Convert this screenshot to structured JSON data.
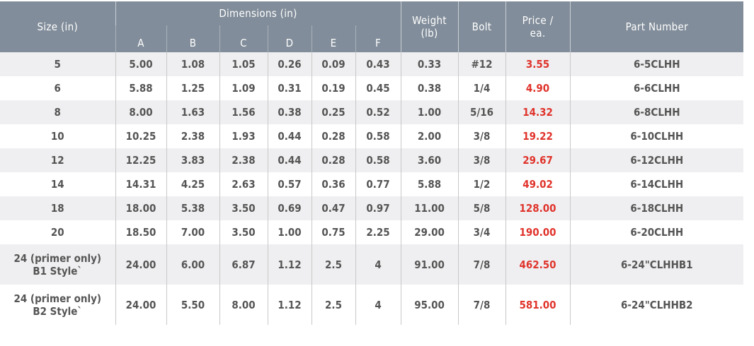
{
  "header": {
    "size": "Size (in)",
    "dimensions": "Dimensions (in)",
    "letters": [
      "A",
      "B",
      "C",
      "D",
      "E",
      "F"
    ],
    "weight": [
      "Weight",
      "(lb)"
    ],
    "bolt": "Bolt",
    "price": [
      "Price /",
      "ea."
    ],
    "part_number": "Part Number"
  },
  "colors": {
    "header_bg": "#818d9a",
    "price": "#e0342c",
    "stripe": "#efeff1"
  },
  "rows": [
    {
      "size": [
        "5"
      ],
      "dims": [
        "5.00",
        "1.08",
        "1.05",
        "0.26",
        "0.09",
        "0.43"
      ],
      "weight": "0.33",
      "bolt": "#12",
      "price": "3.55",
      "part": "6-5CLHH"
    },
    {
      "size": [
        "6"
      ],
      "dims": [
        "5.88",
        "1.25",
        "1.09",
        "0.31",
        "0.19",
        "0.45"
      ],
      "weight": "0.38",
      "bolt": "1/4",
      "price": "4.90",
      "part": "6-6CLHH"
    },
    {
      "size": [
        "8"
      ],
      "dims": [
        "8.00",
        "1.63",
        "1.56",
        "0.38",
        "0.25",
        "0.52"
      ],
      "weight": "1.00",
      "bolt": "5/16",
      "price": "14.32",
      "part": "6-8CLHH"
    },
    {
      "size": [
        "10"
      ],
      "dims": [
        "10.25",
        "2.38",
        "1.93",
        "0.44",
        "0.28",
        "0.58"
      ],
      "weight": "2.00",
      "bolt": "3/8",
      "price": "19.22",
      "part": "6-10CLHH"
    },
    {
      "size": [
        "12"
      ],
      "dims": [
        "12.25",
        "3.83",
        "2.38",
        "0.44",
        "0.28",
        "0.58"
      ],
      "weight": "3.60",
      "bolt": "3/8",
      "price": "29.67",
      "part": "6-12CLHH"
    },
    {
      "size": [
        "14"
      ],
      "dims": [
        "14.31",
        "4.25",
        "2.63",
        "0.57",
        "0.36",
        "0.77"
      ],
      "weight": "5.88",
      "bolt": "1/2",
      "price": "49.02",
      "part": "6-14CLHH"
    },
    {
      "size": [
        "18"
      ],
      "dims": [
        "18.00",
        "5.38",
        "3.50",
        "0.69",
        "0.47",
        "0.97"
      ],
      "weight": "11.00",
      "bolt": "5/8",
      "price": "128.00",
      "part": "6-18CLHH"
    },
    {
      "size": [
        "20"
      ],
      "dims": [
        "18.50",
        "7.00",
        "3.50",
        "1.00",
        "0.75",
        "2.25"
      ],
      "weight": "29.00",
      "bolt": "3/4",
      "price": "190.00",
      "part": "6-20CLHH"
    },
    {
      "size": [
        "24 (primer only)",
        "B1 Style`"
      ],
      "dims": [
        "24.00",
        "6.00",
        "6.87",
        "1.12",
        "2.5",
        "4"
      ],
      "weight": "91.00",
      "bolt": "7/8",
      "price": "462.50",
      "part": "6-24\"CLHHB1"
    },
    {
      "size": [
        "24 (primer only)",
        "B2 Style`"
      ],
      "dims": [
        "24.00",
        "5.50",
        "8.00",
        "1.12",
        "2.5",
        "4"
      ],
      "weight": "95.00",
      "bolt": "7/8",
      "price": "581.00",
      "part": "6-24\"CLHHB2"
    }
  ]
}
